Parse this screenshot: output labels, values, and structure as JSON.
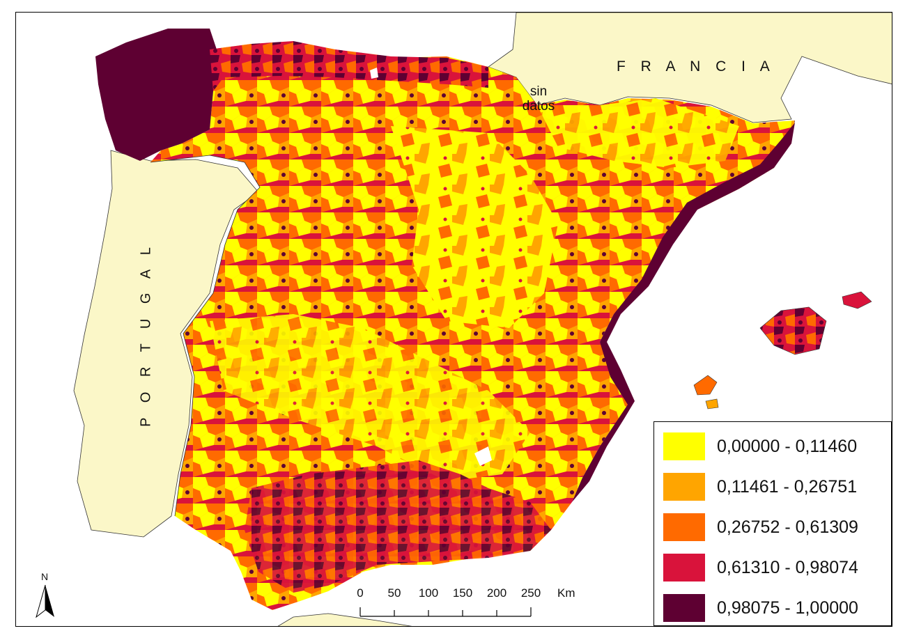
{
  "labels": {
    "france": "F R A N C I A",
    "portugal": "P O R T U G A L",
    "no_data_line1": "sin",
    "no_data_line2": "datos"
  },
  "legend": {
    "classes": [
      {
        "range": "0,00000 - 0,11460",
        "color": "#ffff00"
      },
      {
        "range": "0,11461 - 0,26751",
        "color": "#ffa500"
      },
      {
        "range": "0,26752 - 0,61309",
        "color": "#ff6a00"
      },
      {
        "range": "0,61310 - 0,98074",
        "color": "#d9133b"
      },
      {
        "range": "0,98075 - 1,00000",
        "color": "#5e0032"
      }
    ]
  },
  "scale_bar": {
    "ticks": [
      "0",
      "50",
      "100",
      "150",
      "200",
      "250"
    ],
    "unit": "Km"
  },
  "north_arrow": {
    "label": "N",
    "icon": "north-arrow-icon"
  },
  "colors": {
    "land_other": "#fbf7c8",
    "sea": "#ffffff",
    "no_data": "#fbf7c8"
  }
}
